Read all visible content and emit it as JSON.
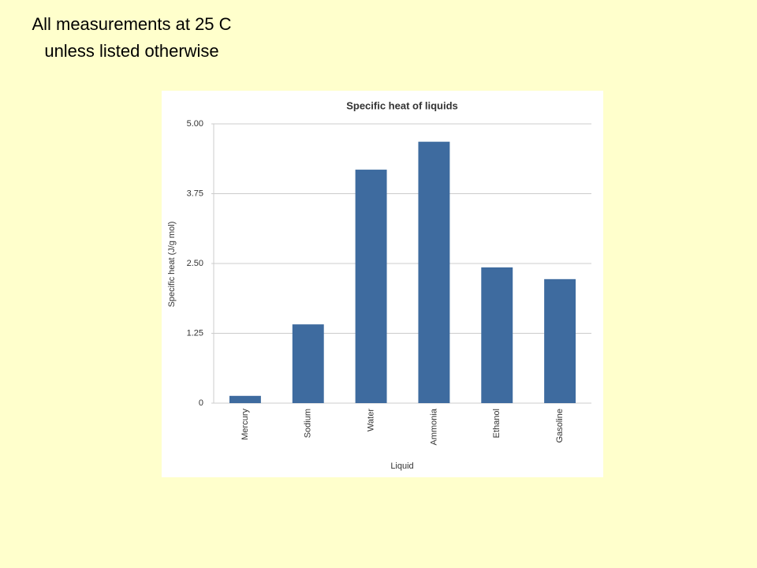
{
  "note": [
    "All measurements at 25 C",
    "unless listed otherwise"
  ],
  "chart_data": {
    "type": "bar",
    "title": "Specific heat of liquids",
    "x_label": "Liquid",
    "y_label": "Specific heat (J/g mol)",
    "categories": [
      "Mercury",
      "Sodium",
      "Water",
      "Ammonia",
      "Ethanol",
      "Gasoline"
    ],
    "values": [
      0.13,
      1.41,
      4.18,
      4.68,
      2.43,
      2.22
    ],
    "color": "#3e6b9f",
    "ylim": [
      0,
      5
    ],
    "yticks": [
      0,
      1.25,
      {
        "value": 2.5,
        "label": "2.50"
      },
      3.75,
      {
        "value": 5,
        "label": "5.00"
      }
    ],
    "grid": true
  }
}
